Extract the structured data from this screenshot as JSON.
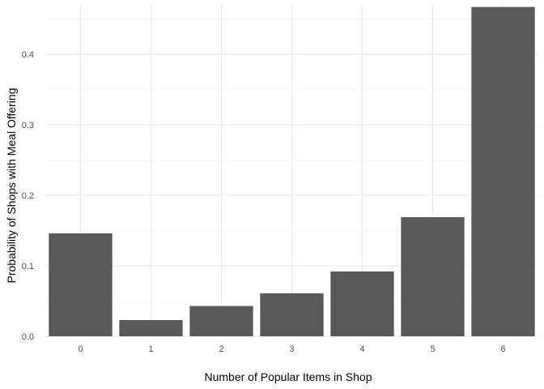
{
  "chart_data": {
    "type": "bar",
    "title": "",
    "xlabel": "Number of Popular Items in Shop",
    "ylabel": "Probability of Shops with Meal Offering",
    "categories": [
      "0",
      "1",
      "2",
      "3",
      "4",
      "5",
      "6"
    ],
    "values": [
      0.146,
      0.023,
      0.043,
      0.061,
      0.092,
      0.169,
      0.467
    ],
    "ylim": [
      0,
      0.47
    ],
    "y_ticks": [
      0.0,
      0.1,
      0.2,
      0.3,
      0.4
    ],
    "y_tick_labels": [
      "0.0",
      "0.1",
      "0.2",
      "0.3",
      "0.4"
    ],
    "grid": true,
    "bar_color": "#595959",
    "legend": "none"
  }
}
